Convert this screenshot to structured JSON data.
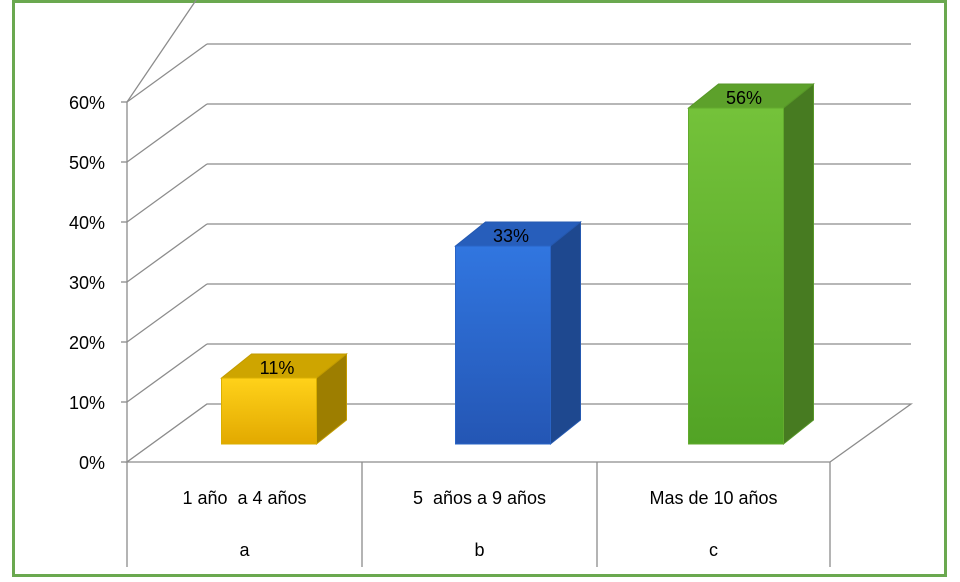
{
  "chart_data": {
    "type": "bar",
    "categories": [
      "1 año  a 4 años",
      "5  años a 9 años",
      "Mas de 10 años"
    ],
    "group_labels": [
      "a",
      "b",
      "c"
    ],
    "values": [
      11,
      33,
      56
    ],
    "data_labels": [
      "11%",
      "33%",
      "56%"
    ],
    "bar_colors": [
      "#f2c200",
      "#2e6fdc",
      "#6dbd32"
    ],
    "ylim": [
      0,
      60
    ],
    "y_ticks": [
      "0%",
      "10%",
      "20%",
      "30%",
      "40%",
      "50%",
      "60%"
    ],
    "y_tick_values": [
      0,
      10,
      20,
      30,
      40,
      50,
      60
    ],
    "grid": true,
    "style": "3d-column"
  }
}
